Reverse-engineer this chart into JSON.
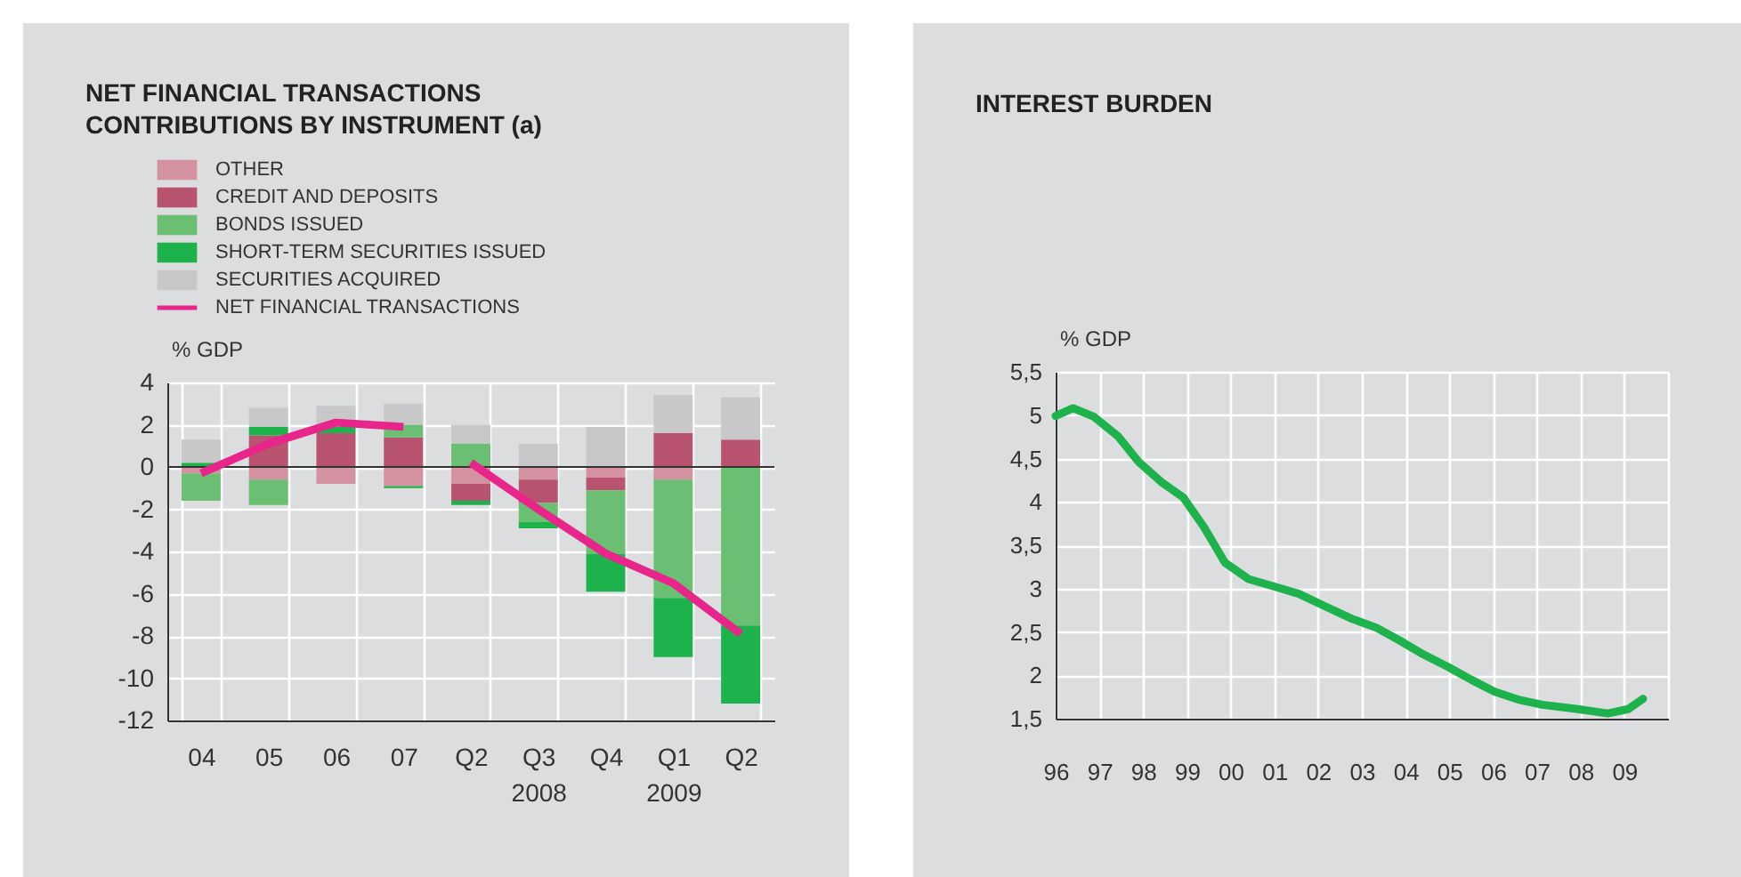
{
  "chart_data": [
    {
      "type": "bar",
      "title": "NET FINANCIAL TRANSACTIONS\nCONTRIBUTIONS BY INSTRUMENT (a)",
      "ylabel": "% GDP",
      "stacked": true,
      "categories": [
        "04",
        "05",
        "06",
        "07",
        "Q2",
        "Q3\n2008",
        "Q4",
        "Q1\n2009",
        "Q2"
      ],
      "series": [
        {
          "name": "OTHER",
          "color": "#d4919f",
          "values": [
            -0.3,
            -0.6,
            -0.8,
            -0.9,
            -0.8,
            -0.6,
            -0.5,
            -0.6,
            0
          ]
        },
        {
          "name": "CREDIT AND DEPOSITS",
          "color": "#b85470",
          "values": [
            0,
            1.5,
            1.6,
            1.4,
            -0.8,
            -1.1,
            -0.6,
            1.6,
            1.3
          ]
        },
        {
          "name": "BONDS ISSUED",
          "color": "#6abf73",
          "values": [
            -1.3,
            -1.2,
            0,
            0.6,
            1.1,
            -0.9,
            -3.0,
            -5.6,
            -7.5
          ]
        },
        {
          "name": "SHORT-TERM SECURITIES ISSUED",
          "color": "#1db24b",
          "values": [
            0.2,
            0.4,
            0.3,
            -0.1,
            -0.2,
            -0.3,
            -1.8,
            -2.8,
            -3.7
          ]
        },
        {
          "name": "SECURITIES ACQUIRED",
          "color": "#c8c8ca",
          "values": [
            1.1,
            0.9,
            1.0,
            1.0,
            0.9,
            1.1,
            1.9,
            1.8,
            2.0
          ]
        },
        {
          "name": "NET FINANCIAL TRANSACTIONS",
          "type": "line",
          "color": "#e8258a",
          "values": [
            -0.3,
            1.1,
            2.1,
            1.9,
            null,
            null,
            null,
            null,
            null
          ]
        },
        {
          "type": "line",
          "color": "#e8258a",
          "values": [
            null,
            null,
            null,
            null,
            0.2,
            -2.0,
            -4.1,
            -5.5,
            -7.9
          ]
        }
      ],
      "ylim": [
        -12,
        4
      ],
      "yticks": [
        -12,
        -10,
        -8,
        -6,
        -4,
        -2,
        0,
        2,
        4
      ],
      "ref_lines": [
        {
          "axis": "y",
          "value": 0,
          "color": "#333333"
        }
      ],
      "grid": true,
      "legend": "top"
    },
    {
      "type": "line",
      "title": "INTEREST BURDEN",
      "ylabel": "% GDP",
      "x": [
        1996.0,
        1996.4,
        1996.88,
        1997.42,
        1997.9,
        1998.44,
        1998.92,
        1999.39,
        1999.87,
        2000.41,
        2001.02,
        2001.56,
        2002.1,
        2002.78,
        2003.33,
        2003.87,
        2004.41,
        2004.96,
        2005.5,
        2006.04,
        2006.58,
        2007.13,
        2007.94,
        2008.62,
        2009.09,
        2009.43
      ],
      "series": [
        {
          "color": "#1db24b",
          "values": [
            4.99,
            5.08,
            4.98,
            4.76,
            4.46,
            4.22,
            4.05,
            3.71,
            3.3,
            3.11,
            3.02,
            2.94,
            2.81,
            2.65,
            2.55,
            2.4,
            2.24,
            2.1,
            1.95,
            1.81,
            1.72,
            1.66,
            1.61,
            1.56,
            1.61,
            1.73
          ]
        }
      ],
      "xlim": [
        1996,
        2010
      ],
      "xticks": [
        {
          "value": 1996,
          "label": "96"
        },
        {
          "value": 1997,
          "label": "97"
        },
        {
          "value": 1998,
          "label": "98"
        },
        {
          "value": 1999,
          "label": "99"
        },
        {
          "value": 2000,
          "label": "00"
        },
        {
          "value": 2001,
          "label": "01"
        },
        {
          "value": 2002,
          "label": "02"
        },
        {
          "value": 2003,
          "label": "03"
        },
        {
          "value": 2004,
          "label": "04"
        },
        {
          "value": 2005,
          "label": "05"
        },
        {
          "value": 2006,
          "label": "06"
        },
        {
          "value": 2007,
          "label": "07"
        },
        {
          "value": 2008,
          "label": "08"
        },
        {
          "value": 2009,
          "label": "09"
        },
        {
          "value": 2010,
          "label": null
        }
      ],
      "ylim": [
        1.5,
        5.5
      ],
      "yticks": [
        {
          "value": 1.5,
          "label": "1,5"
        },
        2,
        {
          "value": 2.5,
          "label": "2,5"
        },
        3,
        {
          "value": 3.5,
          "label": "3,5"
        },
        4,
        {
          "value": 4.5,
          "label": "4,5"
        },
        5,
        {
          "value": 5.5,
          "label": "5,5"
        }
      ],
      "grid": true
    }
  ]
}
